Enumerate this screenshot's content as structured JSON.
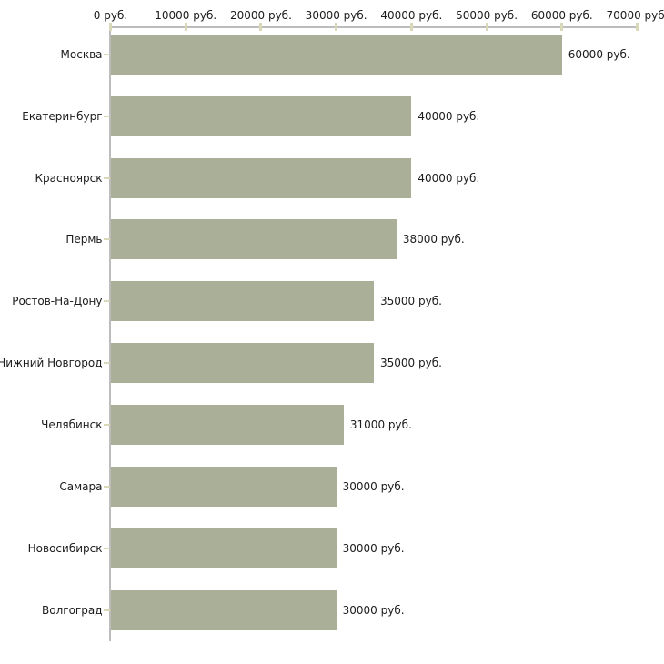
{
  "chart_data": {
    "type": "bar",
    "orientation": "horizontal",
    "title": "",
    "xlabel": "",
    "ylabel": "",
    "unit": "руб.",
    "categories": [
      "Москва",
      "Екатеринбург",
      "Красноярск",
      "Пермь",
      "Ростов-На-Дону",
      "Нижний Новгород",
      "Челябинск",
      "Самара",
      "Новосибирск",
      "Волгоград"
    ],
    "values": [
      60000,
      40000,
      40000,
      38000,
      35000,
      35000,
      31000,
      30000,
      30000,
      30000
    ],
    "value_labels": [
      "60000 руб.",
      "40000 руб.",
      "40000 руб.",
      "38000 руб.",
      "35000 руб.",
      "35000 руб.",
      "31000 руб.",
      "30000 руб.",
      "30000 руб.",
      "30000 руб."
    ],
    "x_ticks": [
      0,
      10000,
      20000,
      30000,
      40000,
      50000,
      60000,
      70000
    ],
    "x_tick_labels": [
      "0 руб.",
      "10000 руб.",
      "20000 руб.",
      "30000 руб.",
      "40000 руб.",
      "50000 руб.",
      "60000 руб.",
      "70000 руб."
    ],
    "xlim": [
      0,
      70000
    ],
    "grid": false,
    "legend": "none",
    "x_axis_position": "top"
  },
  "colors": {
    "bar": "#aab097",
    "axis_line": "#bcbcbc",
    "tick_mark": "#d9d9b8",
    "text": "#1c1c1c",
    "background": "#ffffff"
  }
}
